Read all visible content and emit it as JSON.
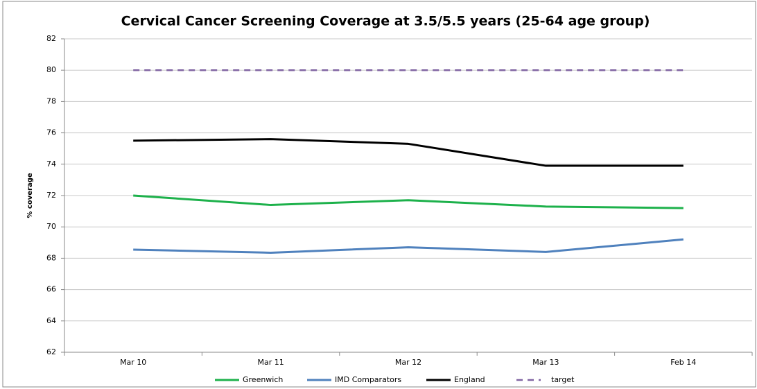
{
  "chart_data": {
    "type": "line",
    "title": "Cervical Cancer Screening Coverage at 3.5/5.5 years (25-64 age group)",
    "y_label": "% coverage",
    "categories": [
      "Mar 10",
      "Mar 11",
      "Mar 12",
      "Mar 13",
      "Feb 14"
    ],
    "series": [
      {
        "name": "Greenwich",
        "color": "#1db14b",
        "dashed": false,
        "values": [
          72.0,
          71.4,
          71.7,
          71.3,
          71.2
        ]
      },
      {
        "name": "IMD Comparators",
        "color": "#4f81bd",
        "dashed": false,
        "values": [
          68.55,
          68.35,
          68.7,
          68.4,
          69.2
        ]
      },
      {
        "name": "England",
        "color": "#000000",
        "dashed": false,
        "values": [
          75.5,
          75.6,
          75.3,
          73.9,
          73.9
        ]
      },
      {
        "name": "target",
        "color": "#8064a2",
        "dashed": true,
        "values": [
          80,
          80,
          80,
          80,
          80
        ]
      }
    ],
    "ylim": [
      62,
      82
    ],
    "yticks": [
      62,
      64,
      66,
      68,
      70,
      72,
      74,
      76,
      78,
      80,
      82
    ],
    "grid": true,
    "legend": "bottom"
  }
}
